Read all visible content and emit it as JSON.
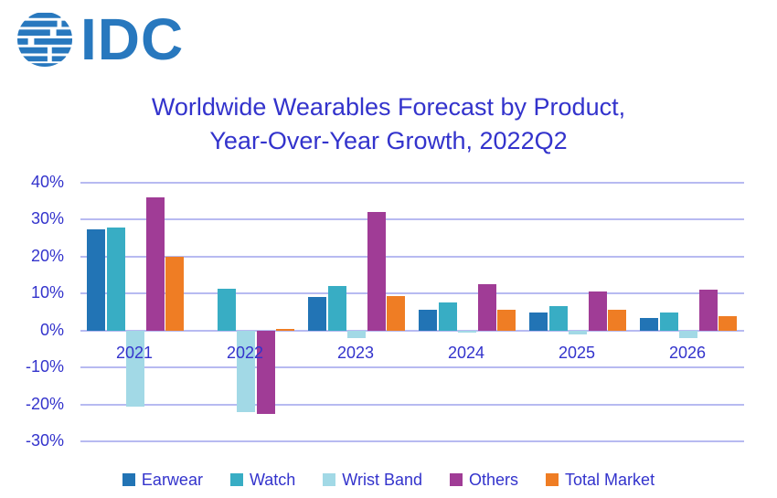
{
  "logo": {
    "text": "IDC",
    "color": "#2878BE"
  },
  "title": {
    "line1": "Worldwide Wearables Forecast by Product,",
    "line2": "Year-Over-Year Growth, 2022Q2",
    "color": "#3333CC"
  },
  "colors": {
    "axis_text": "#3333CC",
    "gridline": "#B7BAF1",
    "background": "#FFFFFF"
  },
  "chart_data": {
    "type": "bar",
    "title": "Worldwide Wearables Forecast by Product, Year-Over-Year Growth, 2022Q2",
    "categories": [
      "2021",
      "2022",
      "2023",
      "2024",
      "2025",
      "2026"
    ],
    "series": [
      {
        "name": "Earwear",
        "color": "#2274B5",
        "values": [
          27.5,
          0,
          9,
          5.5,
          5,
          3.5
        ]
      },
      {
        "name": "Watch",
        "color": "#38ADC4",
        "values": [
          28,
          11.3,
          12,
          7.5,
          6.5,
          5
        ]
      },
      {
        "name": "Wrist Band",
        "color": "#A2D9E6",
        "values": [
          -20.5,
          -22,
          -2,
          -0.5,
          -1,
          -2
        ]
      },
      {
        "name": "Others",
        "color": "#A03C96",
        "values": [
          36,
          -22.5,
          32,
          12.5,
          10.5,
          11
        ]
      },
      {
        "name": "Total Market",
        "color": "#EF7D24",
        "values": [
          20,
          0.5,
          9.3,
          5.5,
          5.5,
          3.8
        ]
      }
    ],
    "xlabel": "",
    "ylabel": "",
    "y_ticks": [
      "40%",
      "30%",
      "20%",
      "10%",
      "0%",
      "-10%",
      "-20%",
      "-30%"
    ],
    "ylim": [
      -30,
      40
    ],
    "grid": true,
    "legend_position": "bottom"
  }
}
